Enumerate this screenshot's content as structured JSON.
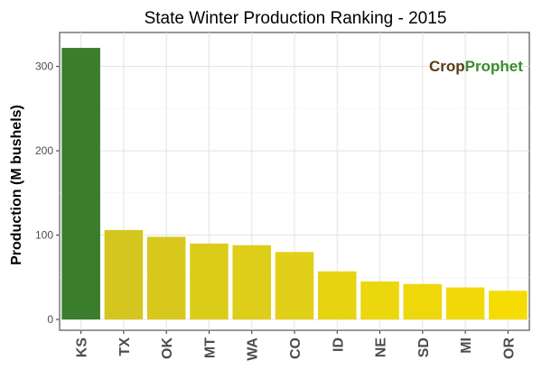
{
  "chart_data": {
    "type": "bar",
    "title": "State Winter  Production Ranking - 2015",
    "xlabel": "",
    "ylabel": "Production (M bushels)",
    "categories": [
      "KS",
      "TX",
      "OK",
      "MT",
      "WA",
      "CO",
      "ID",
      "NE",
      "SD",
      "MI",
      "OR"
    ],
    "values": [
      322,
      106,
      98,
      90,
      88,
      80,
      57,
      45,
      42,
      38,
      34
    ],
    "ylim": [
      0,
      340
    ],
    "yticks": [
      0,
      100,
      200,
      300
    ],
    "grid": true,
    "legend": "none",
    "colors": [
      "#3a7d2c",
      "#d4c61e",
      "#d8c81c",
      "#dccc1a",
      "#decd19",
      "#e2cf17",
      "#e8d311",
      "#ecd60d",
      "#eed70b",
      "#f1d908",
      "#f5dc04"
    ]
  },
  "logo": {
    "part1": "Crop",
    "part2": "Prophet",
    "color1": "#5b3a1a",
    "color2": "#3a8a2e"
  }
}
